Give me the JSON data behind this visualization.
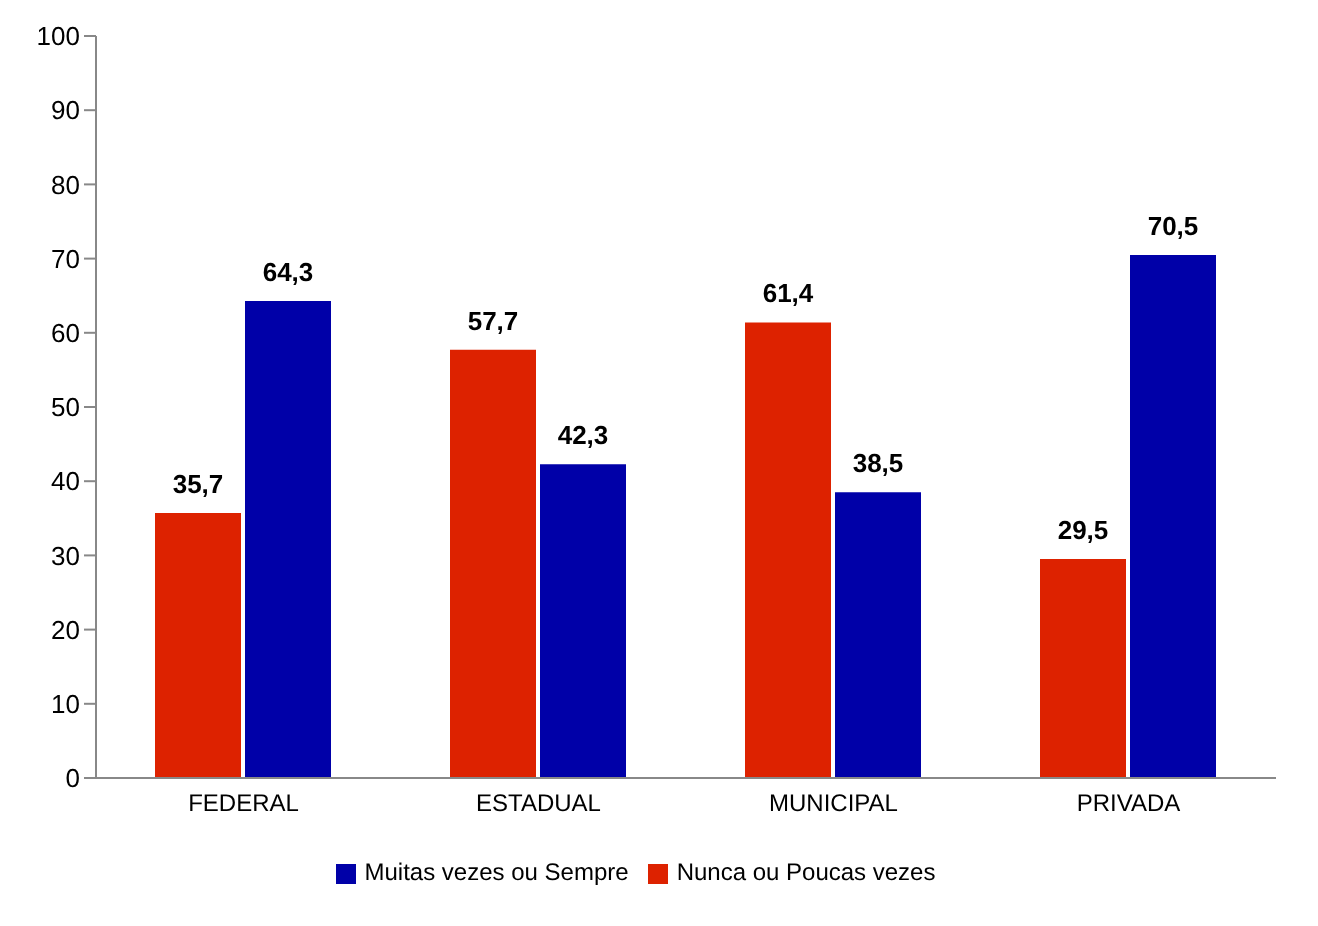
{
  "chart_data": {
    "type": "bar",
    "categories": [
      "FEDERAL",
      "ESTADUAL",
      "MUNICIPAL",
      "PRIVADA"
    ],
    "series": [
      {
        "name": "Nunca ou Poucas vezes",
        "color": "#dd2200",
        "values": [
          35.7,
          57.7,
          61.4,
          29.5
        ],
        "value_labels": [
          "35,7",
          "57,7",
          "61,4",
          "29,5"
        ]
      },
      {
        "name": "Muitas vezes ou Sempre",
        "color": "#0000a8",
        "values": [
          64.3,
          42.3,
          38.5,
          70.5
        ],
        "value_labels": [
          "64,3",
          "42,3",
          "38,5",
          "70,5"
        ]
      }
    ],
    "ylim": [
      0,
      100
    ],
    "yticks": [
      0,
      10,
      20,
      30,
      40,
      50,
      60,
      70,
      80,
      90,
      100
    ],
    "grid": false,
    "legend": "bottom"
  }
}
